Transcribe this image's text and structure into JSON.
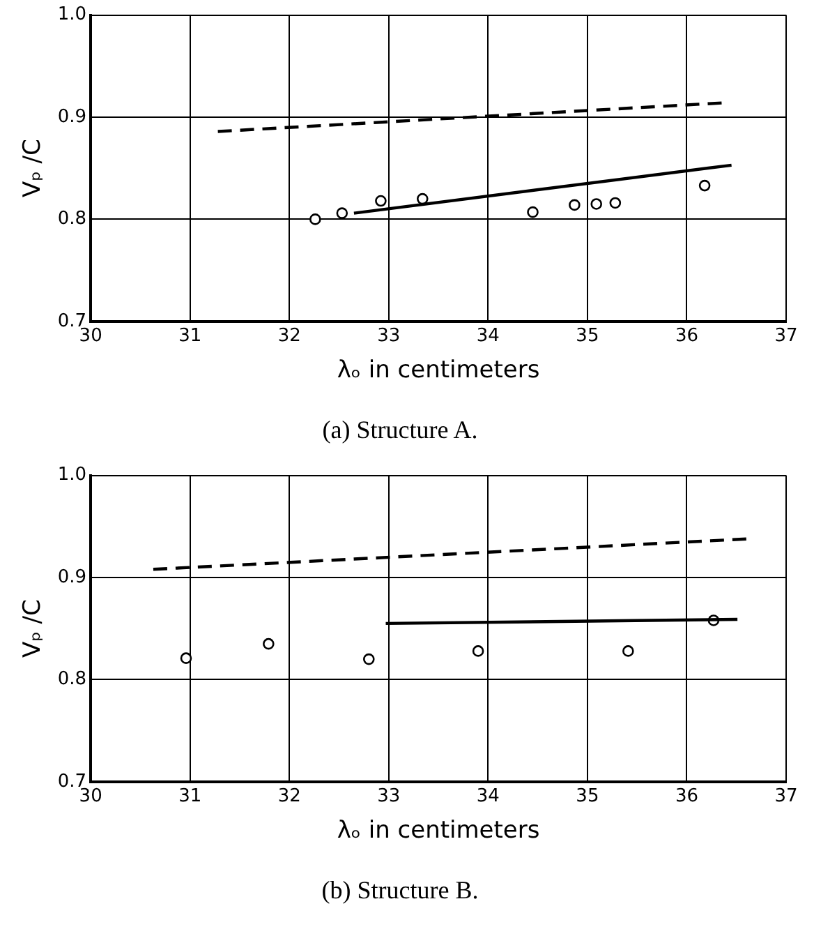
{
  "chart_data": [
    {
      "type": "line",
      "title": "(a) Structure A.",
      "xlabel": "λₒ in centimeters",
      "ylabel": "Vₚ /C",
      "xlim": [
        30,
        37
      ],
      "ylim": [
        0.7,
        1.0
      ],
      "xticks": [
        30,
        31,
        32,
        33,
        34,
        35,
        36,
        37
      ],
      "yticks": [
        {
          "value": 0.7,
          "label": "0.7"
        },
        {
          "value": 0.8,
          "label": "0.8"
        },
        {
          "value": 0.9,
          "label": "0.9"
        },
        {
          "value": 1.0,
          "label": "1.0"
        }
      ],
      "grid": true,
      "legend": false,
      "series": [
        {
          "color": "#000000",
          "line_style": "dashed",
          "marker": "none",
          "x": [
            31.28,
            36.36
          ],
          "values": [
            0.886,
            0.914
          ]
        },
        {
          "color": "#000000",
          "line_style": "solid",
          "marker": "none",
          "x": [
            32.65,
            36.45
          ],
          "values": [
            0.806,
            0.853
          ]
        },
        {
          "type": "scatter",
          "color": "#000000",
          "marker": "circle",
          "x": [
            32.26,
            32.53,
            32.92,
            33.34,
            34.45,
            34.87,
            35.09,
            35.28,
            36.18
          ],
          "values": [
            0.8,
            0.806,
            0.818,
            0.82,
            0.807,
            0.814,
            0.815,
            0.816,
            0.833
          ]
        }
      ]
    },
    {
      "type": "line",
      "title": "(b) Structure B.",
      "xlabel": "λₒ in centimeters",
      "ylabel": "Vₚ /C",
      "xlim": [
        30,
        37
      ],
      "ylim": [
        0.7,
        1.0
      ],
      "xticks": [
        30,
        31,
        32,
        33,
        34,
        35,
        36,
        37
      ],
      "yticks": [
        {
          "value": 0.7,
          "label": "0.7"
        },
        {
          "value": 0.8,
          "label": "0.8"
        },
        {
          "value": 0.9,
          "label": "0.9"
        },
        {
          "value": 1.0,
          "label": "1.0"
        }
      ],
      "grid": true,
      "legend": false,
      "series": [
        {
          "color": "#000000",
          "line_style": "dashed",
          "marker": "none",
          "x": [
            30.63,
            36.65
          ],
          "values": [
            0.908,
            0.938
          ]
        },
        {
          "color": "#000000",
          "line_style": "solid",
          "marker": "none",
          "x": [
            32.97,
            36.51
          ],
          "values": [
            0.855,
            0.859
          ]
        },
        {
          "type": "scatter",
          "color": "#000000",
          "marker": "circle",
          "x": [
            30.96,
            31.79,
            32.8,
            33.9,
            35.41,
            36.27
          ],
          "values": [
            0.821,
            0.835,
            0.82,
            0.828,
            0.828,
            0.858
          ]
        }
      ]
    }
  ]
}
